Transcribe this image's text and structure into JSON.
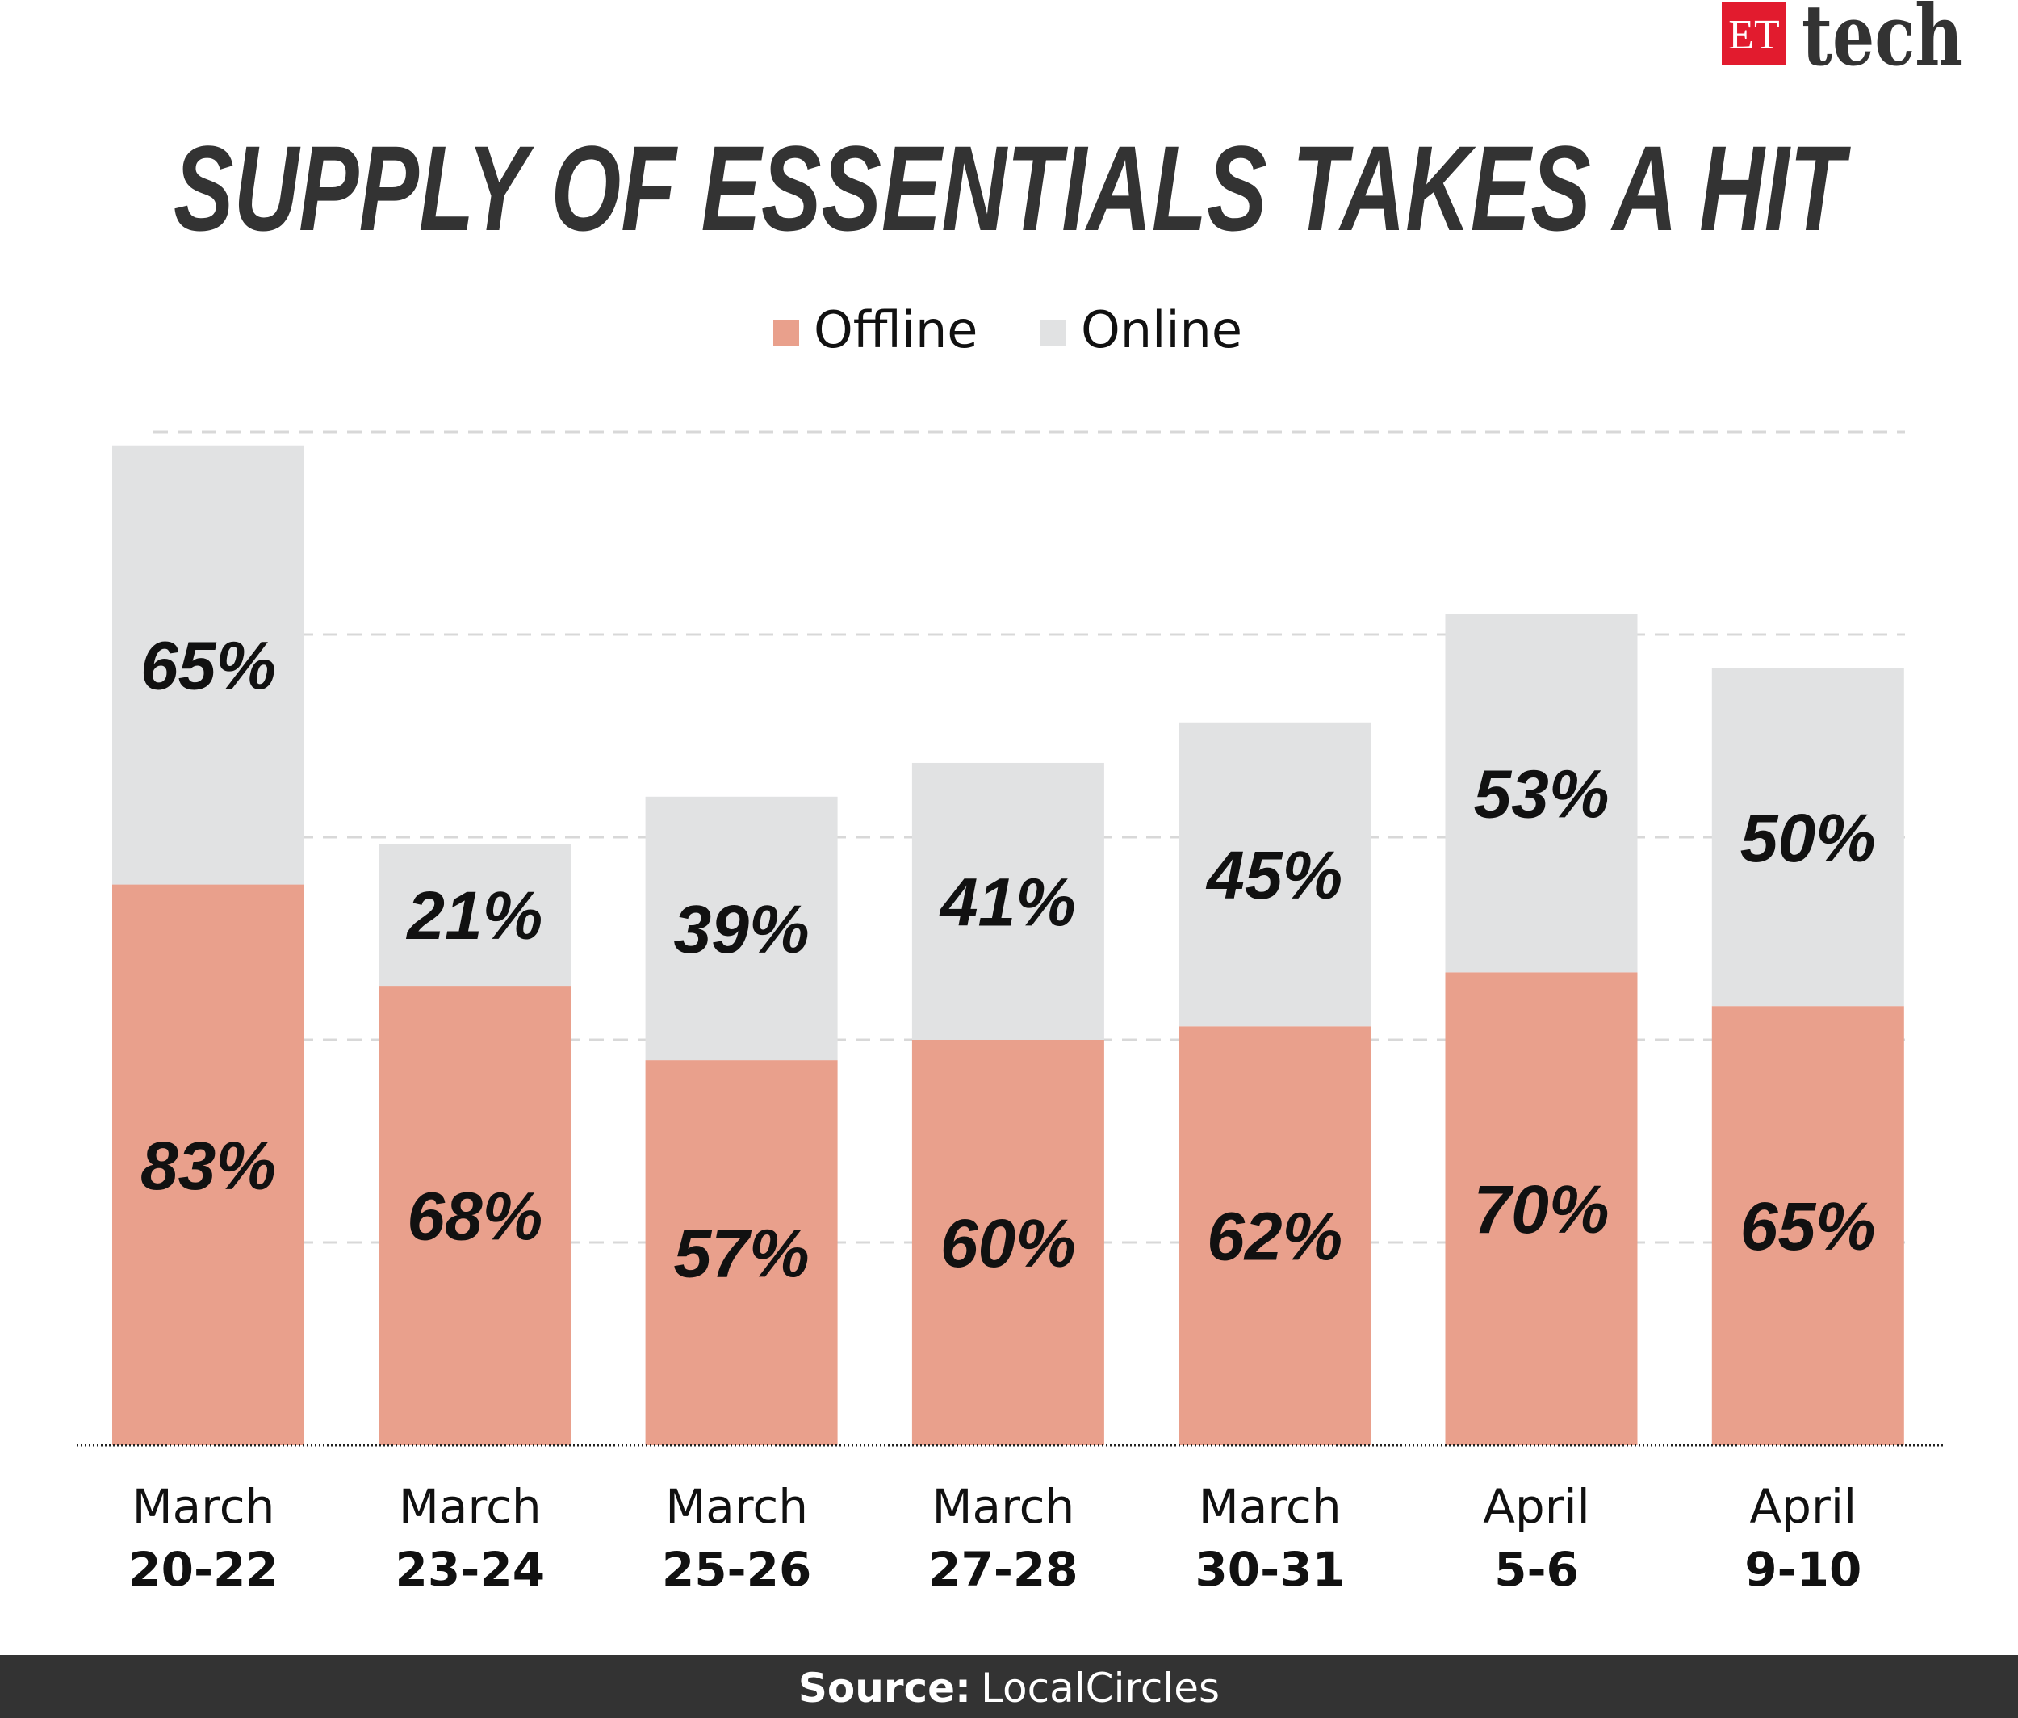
{
  "logo": {
    "et": "ET",
    "tech": "tech",
    "color": "#E21B2E"
  },
  "chart_data": {
    "type": "bar",
    "stacked": true,
    "title": "SUPPLY OF ESSENTIALS TAKES A HIT",
    "categories": [
      {
        "month": "March",
        "days": "20-22"
      },
      {
        "month": "March",
        "days": "23-24"
      },
      {
        "month": "March",
        "days": "25-26"
      },
      {
        "month": "March",
        "days": "27-28"
      },
      {
        "month": "March",
        "days": "30-31"
      },
      {
        "month": "April",
        "days": "5-6"
      },
      {
        "month": "April",
        "days": "9-10"
      }
    ],
    "series": [
      {
        "name": "Offline",
        "color": "#E9A08C",
        "values": [
          83,
          68,
          57,
          60,
          62,
          70,
          65
        ],
        "labels": [
          "83%",
          "68%",
          "57%",
          "60%",
          "62%",
          "70%",
          "65%"
        ]
      },
      {
        "name": "Online",
        "color": "#E1E2E3",
        "values": [
          65,
          21,
          39,
          41,
          45,
          53,
          50
        ],
        "labels": [
          "65%",
          "21%",
          "39%",
          "41%",
          "45%",
          "53%",
          "50%"
        ]
      }
    ],
    "ylim": [
      0,
      150
    ],
    "gridlines": [
      30,
      60,
      90,
      120,
      150
    ],
    "grid": true,
    "legend": "top-center",
    "xlabel": "",
    "ylabel": ""
  },
  "footer": {
    "source_label": "Source:",
    "source": "LocalCircles"
  }
}
